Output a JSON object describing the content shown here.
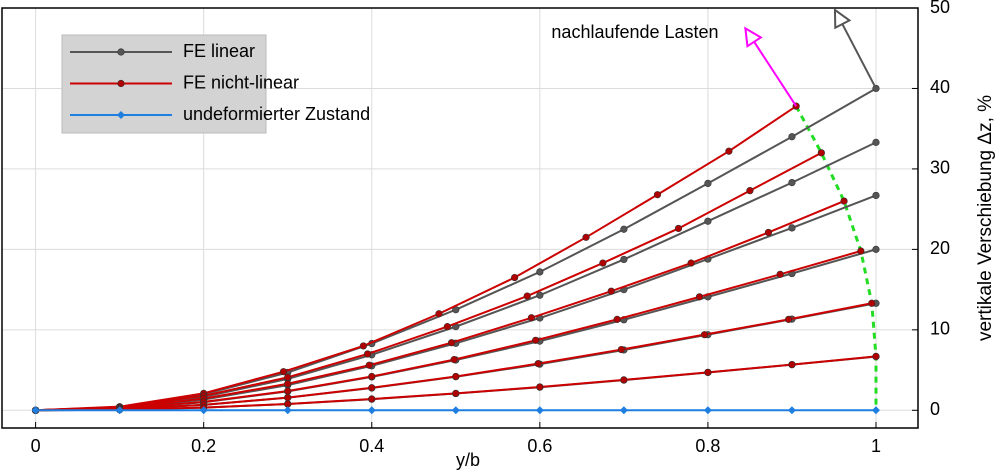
{
  "chart_data": {
    "type": "line",
    "x_label": "y/b",
    "y_label": "vertikale Verschiebung Δz, %",
    "xlim": [
      -0.04,
      1.05
    ],
    "xticks": [
      0,
      0.2,
      0.4,
      0.6,
      0.8,
      1
    ],
    "ylim": [
      -2.2,
      50
    ],
    "yticks": [
      0,
      10,
      20,
      30,
      40,
      50
    ],
    "y_axis_side": "right",
    "grid": true,
    "legend": "upper left",
    "series": [
      {
        "name": "FE linear",
        "color": "#555555",
        "marker_color": "#555555",
        "marker": "circle",
        "curves": [
          {
            "x": [
              0,
              0.1,
              0.2,
              0.3,
              0.4,
              0.5,
              0.6,
              0.7,
              0.8,
              0.9,
              1
            ],
            "values": [
              0,
              0.4,
              2.0,
              4.7,
              8.3,
              12.5,
              17.2,
              22.5,
              28.2,
              34.0,
              40
            ]
          },
          {
            "x": [
              0,
              0.1,
              0.2,
              0.3,
              0.4,
              0.5,
              0.6,
              0.7,
              0.8,
              0.9,
              1
            ],
            "values": [
              0,
              0.33,
              1.67,
              3.9,
              6.9,
              10.4,
              14.3,
              18.75,
              23.5,
              28.3,
              33.3
            ]
          },
          {
            "x": [
              0,
              0.1,
              0.2,
              0.3,
              0.4,
              0.5,
              0.6,
              0.7,
              0.8,
              0.9,
              1
            ],
            "values": [
              0,
              0.27,
              1.33,
              3.13,
              5.53,
              8.33,
              11.47,
              15,
              18.8,
              22.67,
              26.7
            ]
          },
          {
            "x": [
              0,
              0.1,
              0.2,
              0.3,
              0.4,
              0.5,
              0.6,
              0.7,
              0.8,
              0.9,
              1
            ],
            "values": [
              0,
              0.2,
              1,
              2.35,
              4.15,
              6.25,
              8.6,
              11.25,
              14.1,
              17,
              20
            ]
          },
          {
            "x": [
              0,
              0.1,
              0.2,
              0.3,
              0.4,
              0.5,
              0.6,
              0.7,
              0.8,
              0.9,
              1
            ],
            "values": [
              0,
              0.13,
              0.67,
              1.57,
              2.77,
              4.17,
              5.73,
              7.5,
              9.4,
              11.33,
              13.3
            ]
          },
          {
            "x": [
              0,
              0.1,
              0.2,
              0.3,
              0.4,
              0.5,
              0.6,
              0.7,
              0.8,
              0.9,
              1
            ],
            "values": [
              0,
              0.07,
              0.33,
              0.78,
              1.38,
              2.08,
              2.87,
              3.75,
              4.7,
              5.67,
              6.67
            ]
          }
        ]
      },
      {
        "name": "FE nicht-linear",
        "color": "#cc0000",
        "marker_color": "#b00000",
        "marker": "circle",
        "curves": [
          {
            "x": [
              0,
              0.1,
              0.2,
              0.295,
              0.39,
              0.48,
              0.57,
              0.655,
              0.74,
              0.825,
              0.905
            ],
            "values": [
              0,
              0.45,
              2.1,
              4.8,
              8.0,
              12.0,
              16.5,
              21.5,
              26.8,
              32.2,
              37.8
            ]
          },
          {
            "x": [
              0,
              0.1,
              0.2,
              0.3,
              0.395,
              0.49,
              0.585,
              0.675,
              0.765,
              0.85,
              0.935
            ],
            "values": [
              0,
              0.38,
              1.8,
              4.1,
              7.0,
              10.4,
              14.2,
              18.3,
              22.6,
              27.3,
              32.0
            ]
          },
          {
            "x": [
              0,
              0.1,
              0.2,
              0.3,
              0.397,
              0.495,
              0.59,
              0.685,
              0.78,
              0.872,
              0.962
            ],
            "values": [
              0,
              0.3,
              1.45,
              3.3,
              5.6,
              8.4,
              11.5,
              14.8,
              18.3,
              22.1,
              26.0
            ]
          },
          {
            "x": [
              0,
              0.1,
              0.2,
              0.3,
              0.4,
              0.498,
              0.595,
              0.692,
              0.79,
              0.886,
              0.982
            ],
            "values": [
              0,
              0.22,
              1.05,
              2.4,
              4.2,
              6.3,
              8.7,
              11.3,
              14.1,
              16.9,
              19.8
            ]
          },
          {
            "x": [
              0,
              0.1,
              0.2,
              0.3,
              0.4,
              0.5,
              0.598,
              0.697,
              0.796,
              0.896,
              0.995
            ],
            "values": [
              0,
              0.14,
              0.68,
              1.58,
              2.8,
              4.2,
              5.8,
              7.55,
              9.4,
              11.3,
              13.3
            ]
          },
          {
            "x": [
              0,
              0.1,
              0.2,
              0.3,
              0.4,
              0.5,
              0.6,
              0.7,
              0.8,
              0.9,
              1.0
            ],
            "values": [
              0,
              0.07,
              0.34,
              0.79,
              1.4,
              2.1,
              2.9,
              3.78,
              4.72,
              5.68,
              6.7
            ]
          }
        ]
      },
      {
        "name": "undeformierter Zustand",
        "color": "#1e7fe0",
        "marker_color": "#1e7fe0",
        "marker": "diamond",
        "curves": [
          {
            "x": [
              0,
              0.1,
              0.2,
              0.3,
              0.4,
              0.5,
              0.6,
              0.7,
              0.8,
              0.9,
              1
            ],
            "values": [
              0,
              0,
              0,
              0,
              0,
              0,
              0,
              0,
              0,
              0,
              0
            ]
          }
        ]
      }
    ],
    "envelope": {
      "color": "#22dd22",
      "x": [
        0.905,
        0.935,
        0.962,
        0.982,
        0.995,
        1.0,
        1.0
      ],
      "values": [
        37.8,
        32.0,
        26.0,
        19.8,
        13.3,
        6.7,
        0
      ]
    },
    "annotation": {
      "text": "nachlaufende Lasten",
      "arrows": [
        {
          "color": "#ff00ff",
          "x": [
            0.905,
            0.855
          ],
          "values": [
            37.8,
            45.8
          ]
        },
        {
          "color": "#555555",
          "x": [
            1,
            0.96
          ],
          "values": [
            40,
            48
          ]
        }
      ]
    }
  }
}
